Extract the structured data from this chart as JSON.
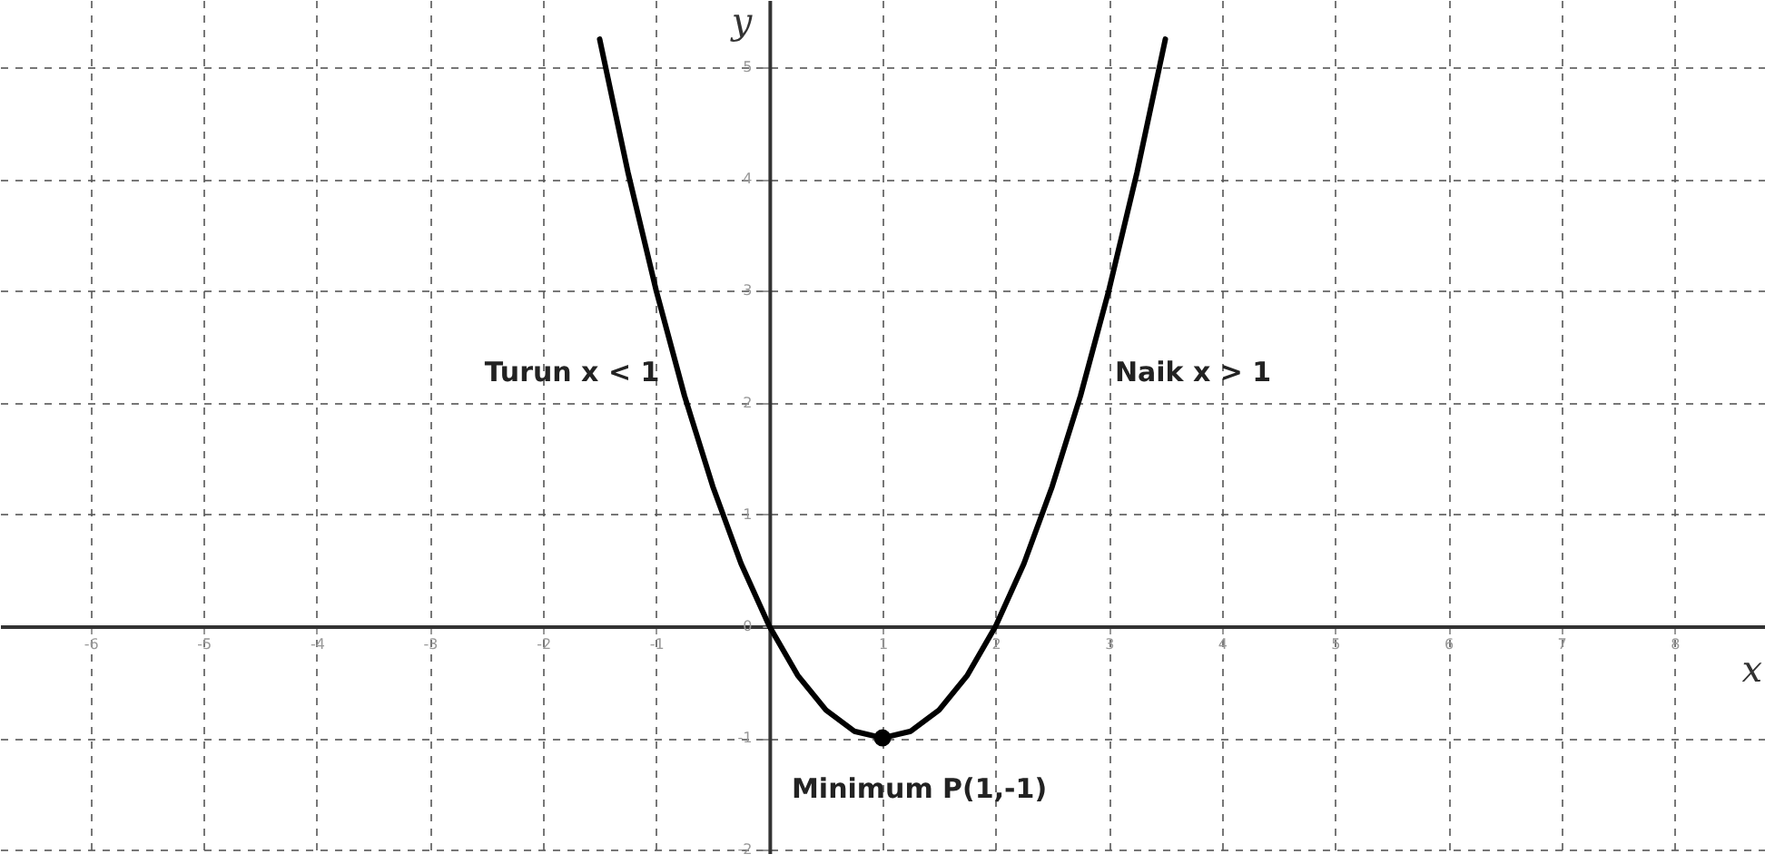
{
  "chart_data": {
    "type": "line",
    "xlabel": "x",
    "ylabel": "y",
    "xlim": [
      -6.8,
      8.8
    ],
    "ylim": [
      -2.03,
      5.6
    ],
    "xticks": [
      -6,
      -5,
      -4,
      -3,
      -2,
      -1,
      {
        "value": 0,
        "label": null
      },
      1,
      2,
      3,
      4,
      5,
      6,
      7,
      8
    ],
    "yticks": [
      -2,
      -1,
      0,
      1,
      2,
      3,
      4,
      5
    ],
    "grid": true,
    "line_style": "solid",
    "series": [
      {
        "type": "line",
        "color": "#000000",
        "marker": "none",
        "x": [
          -1.5,
          -1.25,
          -1,
          -0.75,
          -0.5,
          -0.25,
          0,
          0.25,
          0.5,
          0.75,
          1,
          1.25,
          1.5,
          1.75,
          2,
          2.25,
          2.5,
          2.75,
          3,
          3.25,
          3.5
        ],
        "values": [
          5.25,
          4.06,
          3,
          2.06,
          1.25,
          0.56,
          0,
          -0.44,
          -0.75,
          -0.94,
          -1,
          -0.94,
          -0.75,
          -0.44,
          0,
          0.56,
          1.25,
          2.06,
          3,
          4.06,
          5.25
        ]
      },
      {
        "type": "scatter",
        "color": "#000000",
        "marker": "circle",
        "x": [
          1
        ],
        "values": [
          -1
        ]
      }
    ],
    "annotations": [
      "Turun x < 1",
      "Naik x > 1",
      {
        "text": "Minimum P(1,-1)",
        "x": 1,
        "y": -1
      }
    ]
  }
}
